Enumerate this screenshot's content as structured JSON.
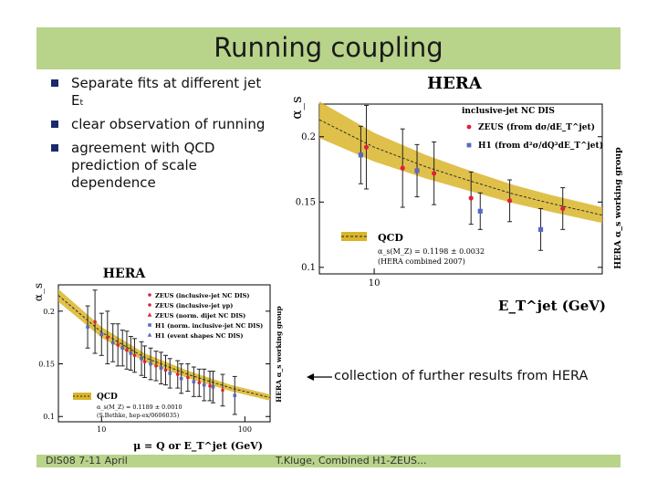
{
  "slide": {
    "title": "Running coupling",
    "bullets": [
      "Separate fits at different jet Eₜ",
      "clear observation of running",
      "agreement with QCD prediction of scale dependence"
    ],
    "annotation": "collection of further results from HERA",
    "footer_left": "DIS08 7-11 April",
    "footer_right": "T.Kluge, Combined H1-ZEUS..."
  },
  "colors": {
    "band": "#d9b52a",
    "zeus": "#e0203a",
    "h1": "#5868c8",
    "title_bar": "#b8d38a"
  },
  "chart_data": [
    {
      "type": "scatter",
      "title": "HERA",
      "subtitle": "inclusive-jet NC DIS",
      "xlabel": "E_T^jet (GeV)",
      "ylabel": "α_s",
      "side_label": "HERA α_s working group",
      "x_scale": "log",
      "xlim": [
        6.5,
        60
      ],
      "ylim": [
        0.095,
        0.225
      ],
      "xticks": [
        10
      ],
      "yticks": [
        0.1,
        0.15,
        0.2
      ],
      "legend_position": "top-right",
      "series": [
        {
          "name": "ZEUS (from dσ/dE_T^jet)",
          "marker": "circle",
          "x": [
            9.4,
            12.5,
            16.0,
            21.4,
            29.0,
            44.0
          ],
          "y": [
            0.192,
            0.176,
            0.172,
            0.153,
            0.151,
            0.145
          ],
          "err": [
            0.032,
            0.03,
            0.024,
            0.02,
            0.016,
            0.016
          ]
        },
        {
          "name": "H1 (from d²σ/dQ²dE_T^jet)",
          "marker": "square",
          "x": [
            9.0,
            14.0,
            23.0,
            37.0
          ],
          "y": [
            0.186,
            0.174,
            0.143,
            0.129
          ],
          "err": [
            0.022,
            0.02,
            0.014,
            0.016
          ]
        }
      ],
      "qcd_band": {
        "label": "QCD",
        "fit_text": "α_s(M_Z) = 0.1198 ± 0.0032",
        "note": "(HERA combined 2007)",
        "x": [
          6.5,
          10,
          15,
          20,
          30,
          40,
          60
        ],
        "center": [
          0.213,
          0.192,
          0.177,
          0.168,
          0.156,
          0.149,
          0.14
        ],
        "halfwidth": [
          0.014,
          0.011,
          0.009,
          0.008,
          0.007,
          0.0065,
          0.006
        ]
      }
    },
    {
      "type": "scatter",
      "title": "HERA",
      "xlabel": "μ = Q or E_T^jet (GeV)",
      "ylabel": "α_s",
      "side_label": "HERA α_s working group",
      "x_scale": "log",
      "xlim": [
        5,
        150
      ],
      "ylim": [
        0.095,
        0.225
      ],
      "xticks": [
        10,
        100
      ],
      "yticks": [
        0.1,
        0.15,
        0.2
      ],
      "legend_position": "top-right",
      "legend": [
        {
          "label": "ZEUS (inclusive-jet NC DIS)",
          "marker": "circle",
          "color": "#e0203a"
        },
        {
          "label": "ZEUS (inclusive-jet γp)",
          "marker": "circle",
          "color": "#e0203a"
        },
        {
          "label": "ZEUS (norm. dijet NC DIS)",
          "marker": "triangle",
          "color": "#e0203a"
        },
        {
          "label": "H1 (norm. inclusive-jet NC DIS)",
          "marker": "square",
          "color": "#5868c8"
        },
        {
          "label": "H1 (event shapes NC DIS)",
          "marker": "triangle",
          "color": "#5868c8"
        }
      ],
      "series": [
        {
          "name": "ZEUS",
          "marker": "circle",
          "x": [
            9,
            11,
            13,
            15,
            17,
            20,
            24,
            28,
            34,
            40,
            48,
            57,
            70
          ],
          "y": [
            0.19,
            0.175,
            0.168,
            0.163,
            0.158,
            0.152,
            0.148,
            0.144,
            0.14,
            0.137,
            0.132,
            0.129,
            0.125
          ],
          "err": [
            0.03,
            0.025,
            0.02,
            0.018,
            0.016,
            0.015,
            0.014,
            0.014,
            0.013,
            0.013,
            0.013,
            0.014,
            0.015
          ]
        },
        {
          "name": "H1",
          "marker": "square",
          "x": [
            8,
            10,
            12,
            14,
            16,
            19,
            22,
            26,
            30,
            36,
            44,
            52,
            60,
            85
          ],
          "y": [
            0.185,
            0.178,
            0.17,
            0.165,
            0.16,
            0.155,
            0.15,
            0.146,
            0.141,
            0.136,
            0.133,
            0.13,
            0.128,
            0.12
          ],
          "err": [
            0.02,
            0.02,
            0.018,
            0.017,
            0.016,
            0.016,
            0.015,
            0.015,
            0.014,
            0.014,
            0.014,
            0.015,
            0.015,
            0.018
          ]
        }
      ],
      "qcd_band": {
        "label": "QCD",
        "fit_text": "α_s(M_Z) = 0.1189 ± 0.0010",
        "note": "(S.Bethke, hep-ex/0606035)",
        "x": [
          5,
          10,
          20,
          40,
          80,
          150
        ],
        "center": [
          0.215,
          0.18,
          0.156,
          0.14,
          0.127,
          0.118
        ],
        "halfwidth": [
          0.006,
          0.005,
          0.004,
          0.0035,
          0.003,
          0.003
        ]
      }
    }
  ]
}
